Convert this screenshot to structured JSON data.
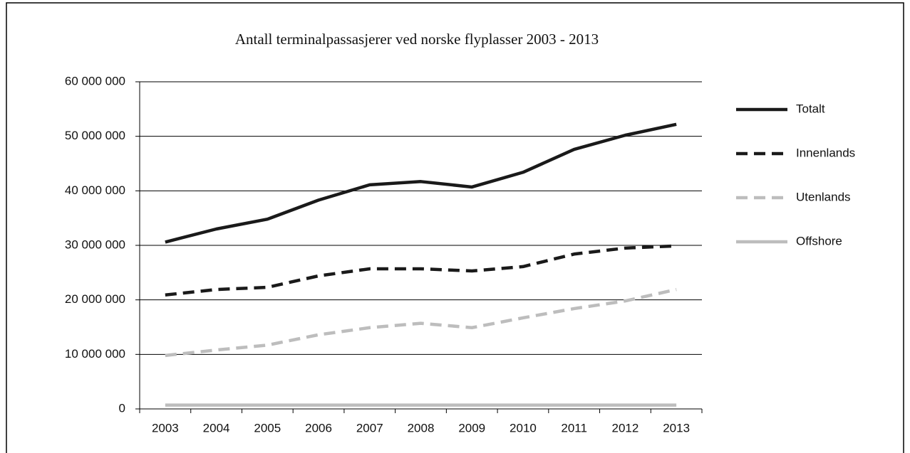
{
  "chart_data": {
    "type": "line",
    "title": "Antall terminalpassasjerer ved norske flyplasser 2003 - 2013",
    "categories": [
      "2003",
      "2004",
      "2005",
      "2006",
      "2007",
      "2008",
      "2009",
      "2010",
      "2011",
      "2012",
      "2013"
    ],
    "series": [
      {
        "name": "Totalt",
        "color": "#1a1a1a",
        "dash": "solid",
        "values": [
          30600000,
          33000000,
          34800000,
          38300000,
          41100000,
          41700000,
          40700000,
          43400000,
          47600000,
          50200000,
          52200000
        ]
      },
      {
        "name": "Innenlands",
        "color": "#1a1a1a",
        "dash": "dashed",
        "values": [
          20900000,
          21900000,
          22300000,
          24400000,
          25700000,
          25700000,
          25300000,
          26100000,
          28400000,
          29500000,
          29900000
        ]
      },
      {
        "name": "Utenlands",
        "color": "#bdbdbd",
        "dash": "dashed",
        "values": [
          9800000,
          10800000,
          11700000,
          13600000,
          14900000,
          15700000,
          14900000,
          16700000,
          18400000,
          19800000,
          21900000
        ]
      },
      {
        "name": "Offshore",
        "color": "#bdbdbd",
        "dash": "solid",
        "values": [
          700000,
          700000,
          700000,
          700000,
          700000,
          700000,
          700000,
          700000,
          700000,
          700000,
          700000
        ]
      }
    ],
    "ylim": [
      0,
      60000000
    ],
    "yticks": [
      0,
      {
        "value": 10000000,
        "label": "10 000 000"
      },
      {
        "value": 20000000,
        "label": "20 000 000"
      },
      {
        "value": 30000000,
        "label": "30 000 000"
      },
      {
        "value": 40000000,
        "label": "40 000 000"
      },
      {
        "value": 50000000,
        "label": "50 000 000"
      },
      {
        "value": 60000000,
        "label": "60 000 000"
      }
    ],
    "grid": true,
    "legend": "right"
  }
}
